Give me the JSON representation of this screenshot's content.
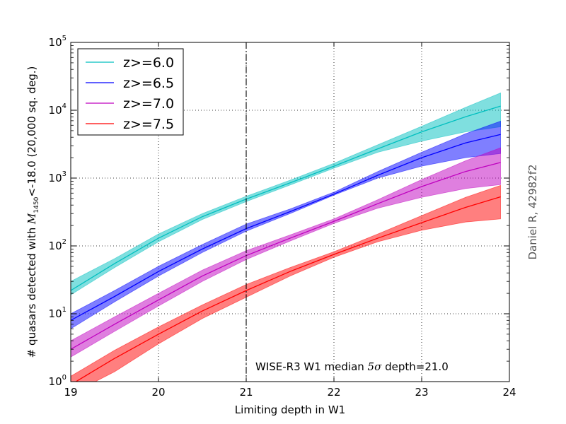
{
  "chart_data": {
    "type": "line",
    "xlabel": "Limiting depth in W1",
    "ylabel_prefix": "# quasars detected with ",
    "ylabel_var": "M",
    "ylabel_sub": "1450",
    "ylabel_suffix": "<-18.0 (20,000 sq. deg.)",
    "side_label": "Daniel R, 42982f2",
    "xlim": [
      19,
      24
    ],
    "ylim": [
      1,
      100000
    ],
    "yscale": "log",
    "grid": true,
    "legend_position": "top-left",
    "x_ticks": [
      "19",
      "20",
      "21",
      "22",
      "23",
      "24"
    ],
    "y_ticks": [
      {
        "base": "10",
        "exp": "0"
      },
      {
        "base": "10",
        "exp": "1"
      },
      {
        "base": "10",
        "exp": "2"
      },
      {
        "base": "10",
        "exp": "3"
      },
      {
        "base": "10",
        "exp": "4"
      },
      {
        "base": "10",
        "exp": "5"
      }
    ],
    "vline": {
      "x": 21.0
    },
    "annotation": {
      "prefix": "WISE-R3 W1 median ",
      "sigma": "5σ",
      "suffix": " depth=21.0"
    },
    "series": [
      {
        "name": "z>=6.0",
        "color": "#00bfbf",
        "x": [
          19.0,
          19.5,
          20.0,
          20.5,
          21.0,
          21.5,
          22.0,
          22.5,
          23.0,
          23.5,
          23.9
        ],
        "y": [
          22,
          55,
          130,
          270,
          490,
          850,
          1500,
          2700,
          4800,
          8000,
          11500
        ],
        "lower": [
          19,
          48,
          115,
          245,
          450,
          790,
          1400,
          2400,
          3500,
          4800,
          5700
        ],
        "upper": [
          30,
          65,
          150,
          300,
          540,
          930,
          1650,
          3100,
          5800,
          11000,
          18000
        ]
      },
      {
        "name": "z>=6.5",
        "color": "#0000ff",
        "x": [
          19.0,
          19.5,
          20.0,
          20.5,
          21.0,
          21.5,
          22.0,
          22.5,
          23.0,
          23.5,
          23.9
        ],
        "y": [
          8,
          18,
          42,
          90,
          180,
          320,
          580,
          1100,
          2000,
          3300,
          4400
        ],
        "lower": [
          6,
          15,
          36,
          80,
          165,
          300,
          560,
          1000,
          1500,
          2000,
          2300
        ],
        "upper": [
          10,
          22,
          50,
          105,
          210,
          350,
          620,
          1250,
          2400,
          4500,
          6900
        ]
      },
      {
        "name": "z>=7.0",
        "color": "#bf00bf",
        "x": [
          19.0,
          19.5,
          20.0,
          20.5,
          21.0,
          21.5,
          22.0,
          22.5,
          23.0,
          23.5,
          23.9
        ],
        "y": [
          3,
          7,
          16,
          36,
          72,
          130,
          230,
          420,
          750,
          1250,
          1700
        ],
        "lower": [
          2.3,
          5.5,
          13,
          30,
          63,
          118,
          215,
          360,
          520,
          700,
          800
        ],
        "upper": [
          4,
          9,
          20,
          44,
          85,
          145,
          250,
          480,
          950,
          1800,
          2800
        ]
      },
      {
        "name": "z>=7.5",
        "color": "#ff0000",
        "x": [
          19.0,
          19.5,
          20.0,
          20.5,
          21.0,
          21.5,
          22.0,
          22.5,
          23.0,
          23.5,
          23.9
        ],
        "y": [
          0.9,
          2.2,
          5,
          11,
          22,
          42,
          75,
          130,
          220,
          370,
          530
        ],
        "lower": [
          0.65,
          1.4,
          3.6,
          8.5,
          17.5,
          36,
          68,
          115,
          170,
          225,
          250
        ],
        "upper": [
          1.2,
          2.9,
          6.4,
          13.5,
          27,
          48,
          82,
          150,
          280,
          520,
          780
        ]
      }
    ]
  }
}
